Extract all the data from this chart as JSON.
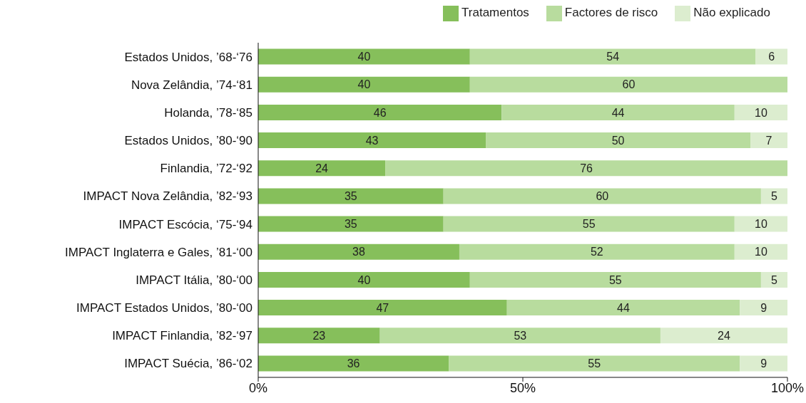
{
  "chart_data": {
    "type": "bar",
    "orientation": "horizontal",
    "stacked": true,
    "data_labels": true,
    "legend": "top right",
    "grid": false,
    "categories": [
      "Estados Unidos, ’68-‘76",
      "Nova Zelândia, ’74-‘81",
      "Holanda, ’78-‘85",
      "Estados Unidos, ’80-‘90",
      "Finlandia, ’72-‘92",
      "IMPACT Nova Zelândia, ’82-‘93",
      "IMPACT Escócia, ‘75-‘94",
      "IMPACT Inglaterra e Gales, ’81-‘00",
      "IMPACT Itália, ’80-‘00",
      "IMPACT Estados Unidos, ’80-‘00",
      "IMPACT Finlandia, ’82-‘97",
      "IMPACT Suécia, ’86-‘02"
    ],
    "series": [
      {
        "name": "Tratamentos",
        "color": "#86bf5b",
        "values": [
          40,
          40,
          46,
          43,
          24,
          35,
          35,
          38,
          40,
          47,
          23,
          36
        ]
      },
      {
        "name": "Factores de risco",
        "color": "#b8dc9e",
        "values": [
          54,
          60,
          44,
          50,
          76,
          60,
          55,
          52,
          55,
          44,
          53,
          55
        ]
      },
      {
        "name": "Não explicado",
        "color": "#dcedcf",
        "values": [
          6,
          null,
          10,
          7,
          null,
          5,
          10,
          10,
          5,
          9,
          24,
          9
        ]
      }
    ],
    "xlim": [
      0,
      100
    ],
    "xticks": [
      {
        "value": 0,
        "label": "0%"
      },
      {
        "value": 50,
        "label": "50%"
      },
      {
        "value": 100,
        "label": "100%"
      }
    ]
  }
}
